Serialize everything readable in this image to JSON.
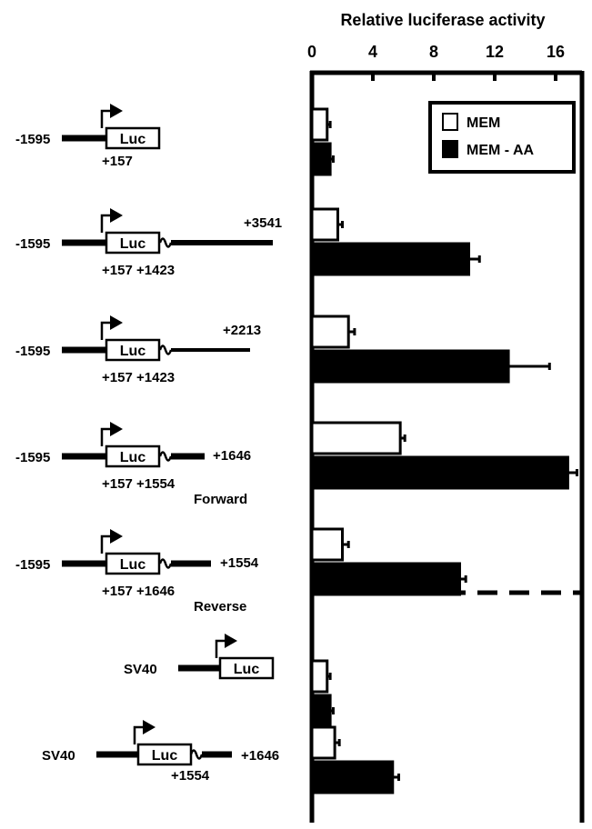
{
  "chart_data": {
    "type": "bar",
    "orientation": "horizontal",
    "title": "Relative luciferase activity",
    "xlim": [
      0,
      19
    ],
    "xticks": [
      0,
      4,
      8,
      12,
      16
    ],
    "grid": false,
    "legend_position": "top-right",
    "series": [
      {
        "name": "MEM",
        "color": "#ffffff",
        "values": [
          1.0,
          1.7,
          2.4,
          5.8,
          2.0,
          1.0,
          1.5
        ],
        "errors": [
          0.2,
          0.3,
          0.4,
          0.3,
          0.4,
          0.2,
          0.3
        ]
      },
      {
        "name": "MEM - AA",
        "color": "#000000",
        "values": [
          1.2,
          10.3,
          12.9,
          16.8,
          9.7,
          1.2,
          5.3
        ],
        "errors": [
          0.2,
          0.7,
          2.7,
          0.6,
          0.4,
          0.2,
          0.4
        ]
      }
    ],
    "separator_after_index": 4
  },
  "constructs": [
    {
      "kind": "full",
      "left": "-1595",
      "start": "+157",
      "splice": "",
      "end": "",
      "orient": ""
    },
    {
      "kind": "full",
      "left": "-1595",
      "start": "+157",
      "splice": "+1423",
      "end": "+3541",
      "orient": ""
    },
    {
      "kind": "full",
      "left": "-1595",
      "start": "+157",
      "splice": "+1423",
      "end": "+2213",
      "orient": ""
    },
    {
      "kind": "full",
      "left": "-1595",
      "start": "+157",
      "splice": "+1554",
      "end": "+1646",
      "orient": "Forward"
    },
    {
      "kind": "full",
      "left": "-1595",
      "start": "+157",
      "splice": "+1646",
      "end": "+1554",
      "orient": "Reverse"
    },
    {
      "kind": "sv40",
      "left": "SV40",
      "start": "",
      "splice": "",
      "end": "",
      "orient": ""
    },
    {
      "kind": "sv40",
      "left": "SV40",
      "start": "",
      "splice": "+1554",
      "end": "+1646",
      "orient": ""
    }
  ],
  "luc_label": "Luc"
}
